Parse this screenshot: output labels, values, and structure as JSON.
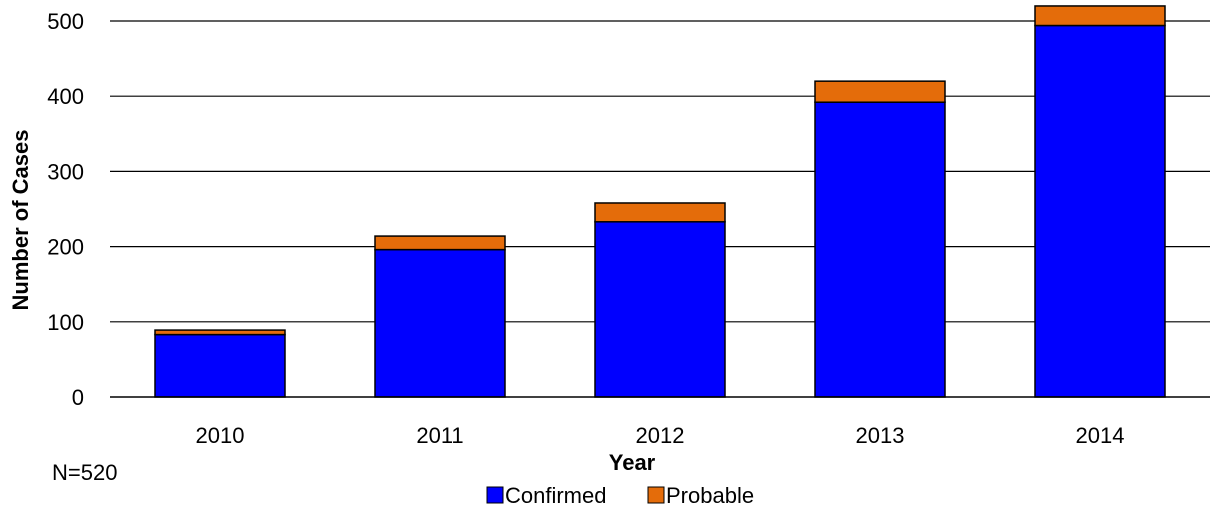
{
  "chart_data": {
    "type": "bar",
    "stacked": true,
    "categories": [
      "2010",
      "2011",
      "2012",
      "2013",
      "2014"
    ],
    "series": [
      {
        "name": "Confirmed",
        "color": "#0000FF",
        "values": [
          83,
          196,
          233,
          392,
          494
        ]
      },
      {
        "name": "Probable",
        "color": "#E46C0A",
        "values": [
          6,
          18,
          25,
          28,
          26
        ]
      }
    ],
    "xlabel": "Year",
    "ylabel": "Number of Cases",
    "ylim": [
      0,
      500
    ],
    "yticks": [
      "0",
      "100",
      "200",
      "300",
      "400",
      "500"
    ],
    "grid": true,
    "legend_position": "bottom",
    "note": "N=520"
  }
}
